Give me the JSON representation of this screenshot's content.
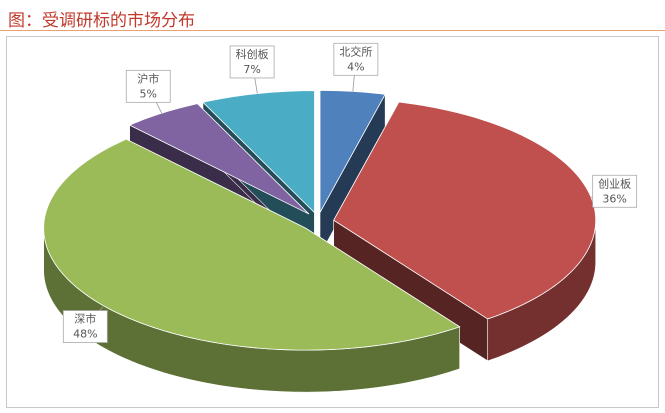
{
  "chart_data": {
    "type": "pie3d",
    "title": "图：受调研标的市场分布",
    "categories": [
      "北交所",
      "创业板",
      "深市",
      "沪市",
      "科创板"
    ],
    "values": [
      4,
      36,
      48,
      5,
      7
    ],
    "value_labels": [
      "4%",
      "36%",
      "48%",
      "5%",
      "7%"
    ],
    "colors": [
      "#4f81bd",
      "#c0504d",
      "#9bbb59",
      "#8064a2",
      "#4bacc6"
    ]
  }
}
